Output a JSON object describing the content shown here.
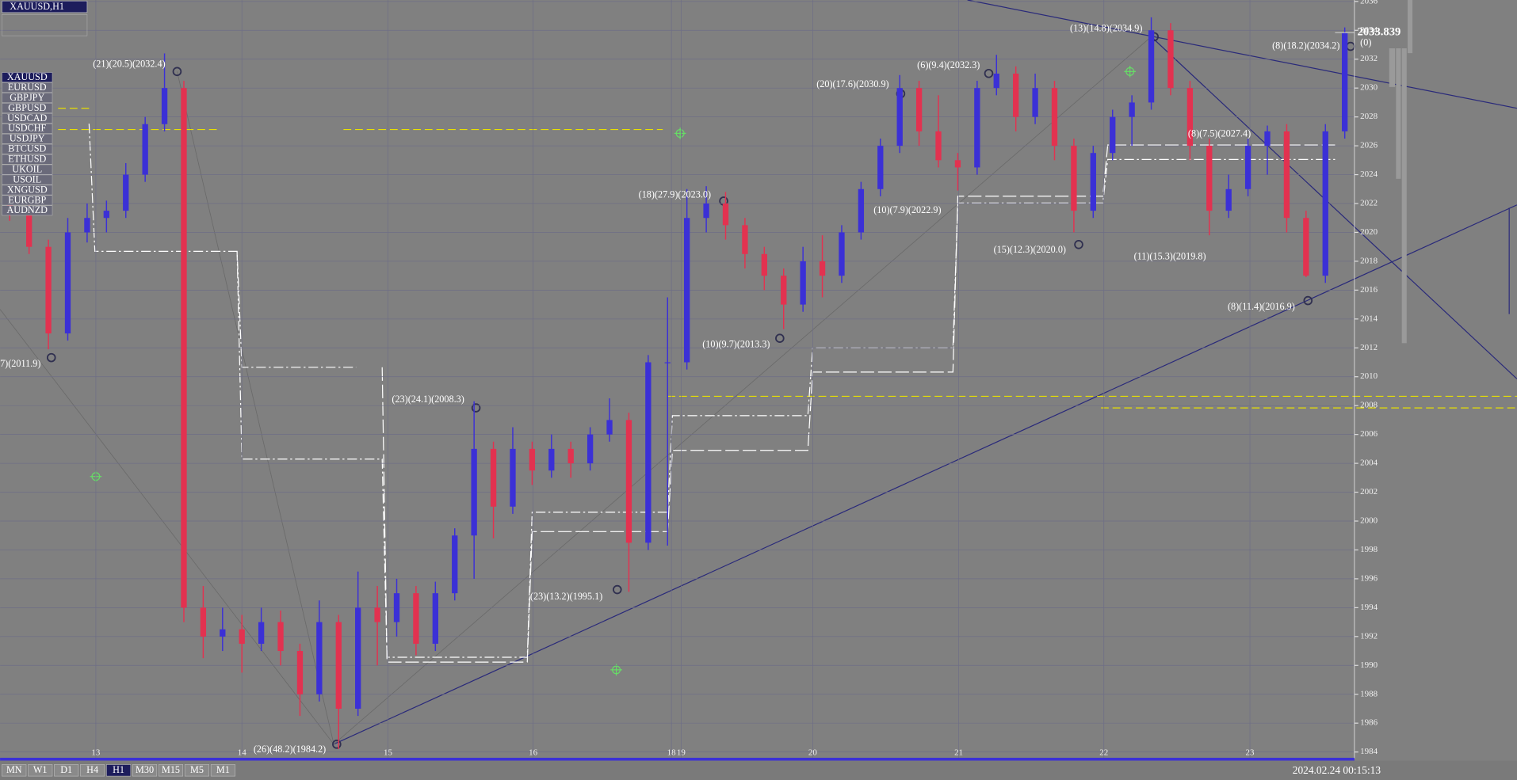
{
  "window_title": "XAUUSD,H1",
  "symbols": [
    "XAUUSD",
    "EURUSD",
    "GBPJPY",
    "GBPUSD",
    "USDCAD",
    "USDCHF",
    "USDJPY",
    "BTCUSD",
    "ETHUSD",
    "UKOIL",
    "USOIL",
    "XNGUSD",
    "EURGBP",
    "AUDNZD"
  ],
  "timeframes": [
    "MN",
    "W1",
    "D1",
    "H4",
    "H1",
    "M30",
    "M15",
    "M5",
    "M1"
  ],
  "status_time": "2024.02.24  00:15:13",
  "chart_data": {
    "type": "candlestick",
    "up_color": "#3b30d6",
    "down_color": "#e23250",
    "grid": true,
    "ylim": [
      1983.5,
      2036.1
    ],
    "yticks": [
      1984,
      1986,
      1988,
      1990,
      1992,
      1994,
      1996,
      1998,
      2000,
      2002,
      2004,
      2006,
      2008,
      2010,
      2012,
      2014,
      2016,
      2018,
      2020,
      2022,
      2024,
      2026,
      2028,
      2030,
      2032,
      2034,
      2036
    ],
    "x_labels": [
      "13",
      "14",
      "15",
      "16",
      "18",
      "19",
      "20",
      "21",
      "22",
      "23"
    ],
    "last_price": 2033.839,
    "open": [
      2022,
      2021.5,
      2019,
      2013,
      2020,
      2021,
      2021.5,
      2024,
      2027.5,
      2030,
      1994,
      1992,
      1992.5,
      1991.5,
      1993,
      1991,
      1988,
      1993,
      1987,
      1994,
      1993,
      1995,
      1991.5,
      1995,
      1999,
      2005,
      2001,
      2005,
      2003.5,
      2005,
      2004,
      2006,
      2007,
      1998.5,
      2011,
      2011,
      2021,
      2022,
      2020.5,
      2018.5,
      2017,
      2015,
      2018,
      2017,
      2020,
      2023,
      2026,
      2030,
      2027,
      2025,
      2024.5,
      2030,
      2031,
      2028,
      2030,
      2026,
      2021.5,
      2025.5,
      2028,
      2029,
      2034,
      2030,
      2026,
      2021.5,
      2023,
      2026,
      2027,
      2021,
      2017,
      2027
    ],
    "high": [
      2022.8,
      2022.3,
      2019.5,
      2021,
      2022,
      2022.2,
      2024.8,
      2028,
      2032.4,
      2030.5,
      1995.5,
      1994,
      1993.5,
      1994,
      1993.8,
      1991.5,
      1994.5,
      1993.5,
      1996.5,
      1995.5,
      1996,
      1995.5,
      1995.8,
      1999.5,
      2008.3,
      2005.5,
      2006.5,
      2005.5,
      2006,
      2005.5,
      2006.5,
      2008.5,
      2007.5,
      2011.5,
      2015.5,
      2023,
      2023.2,
      2022.8,
      2021,
      2019,
      2017.5,
      2019,
      2019.8,
      2020.5,
      2023.5,
      2026.5,
      2030.9,
      2030.5,
      2029.5,
      2025.5,
      2030.5,
      2032.3,
      2031.5,
      2031,
      2030.5,
      2026.5,
      2026,
      2028.5,
      2029.5,
      2034.9,
      2034.5,
      2030.5,
      2026.5,
      2024,
      2026.5,
      2027.4,
      2027.5,
      2021.5,
      2027.5,
      2034.2
    ],
    "low": [
      2020.8,
      2018.5,
      2011.9,
      2012.5,
      2019.3,
      2020,
      2021,
      2023.5,
      2027,
      1993,
      1990.5,
      1991,
      1989.5,
      1991,
      1990,
      1986.5,
      1987.5,
      1984.2,
      1986.5,
      1990,
      1992,
      1990.7,
      1991,
      1994.5,
      1996,
      1998.8,
      2000.5,
      2002.5,
      2003,
      2003,
      2003.5,
      2005.5,
      1995.1,
      1998,
      1998.3,
      2010.5,
      2020,
      2019.5,
      2017.5,
      2016,
      2013.3,
      2014.5,
      2015.5,
      2016.5,
      2019.5,
      2022.5,
      2025.5,
      2026,
      2024.5,
      2022.9,
      2024,
      2029.5,
      2027,
      2027.5,
      2025,
      2020,
      2021,
      2025,
      2026,
      2028.5,
      2029.5,
      2025,
      2019.8,
      2021,
      2022.5,
      2024,
      2020,
      2016.9,
      2016.5,
      2026.5
    ],
    "close": [
      2021.5,
      2019,
      2013,
      2020,
      2021,
      2021.5,
      2024,
      2027.5,
      2030,
      1994,
      1992,
      1992.5,
      1991.5,
      1993,
      1991,
      1988,
      1993,
      1987,
      1994,
      1993,
      1995,
      1991.5,
      1995,
      1999,
      2005,
      2001,
      2005,
      2003.5,
      2005,
      2004,
      2006,
      2007,
      1998.5,
      2011,
      2011,
      2021,
      2022,
      2020.5,
      2018.5,
      2017,
      2015,
      2018,
      2017,
      2020,
      2023,
      2026,
      2030,
      2027,
      2025,
      2024.5,
      2030,
      2031,
      2028,
      2030,
      2026,
      2021.5,
      2025.5,
      2028,
      2029,
      2034,
      2030,
      2026,
      2021.5,
      2023,
      2026,
      2027,
      2021,
      2017,
      2027,
      2033.8
    ],
    "annotations": [
      "(21)(20.5)(2032.4)",
      "7)(2011.9)",
      "(26)(48.2)(1984.2)",
      "(23)(24.1)(2008.3)",
      "(23)(13.2)(1995.1)",
      "(18)(27.9)(2023.0)",
      "(10)(9.7)(2013.3)",
      "(20)(17.6)(2030.9)",
      "(10)(7.9)(2022.9)",
      "(6)(9.4)(2032.3)",
      "(15)(12.3)(2020.0)",
      "(13)(14.8)(2034.9)",
      "(11)(15.3)(2019.8)",
      "(8)(7.5)(2027.4)",
      "(8)(11.4)(2016.9)",
      "(8)(18.2)(2034.2)",
      "(0)"
    ]
  }
}
